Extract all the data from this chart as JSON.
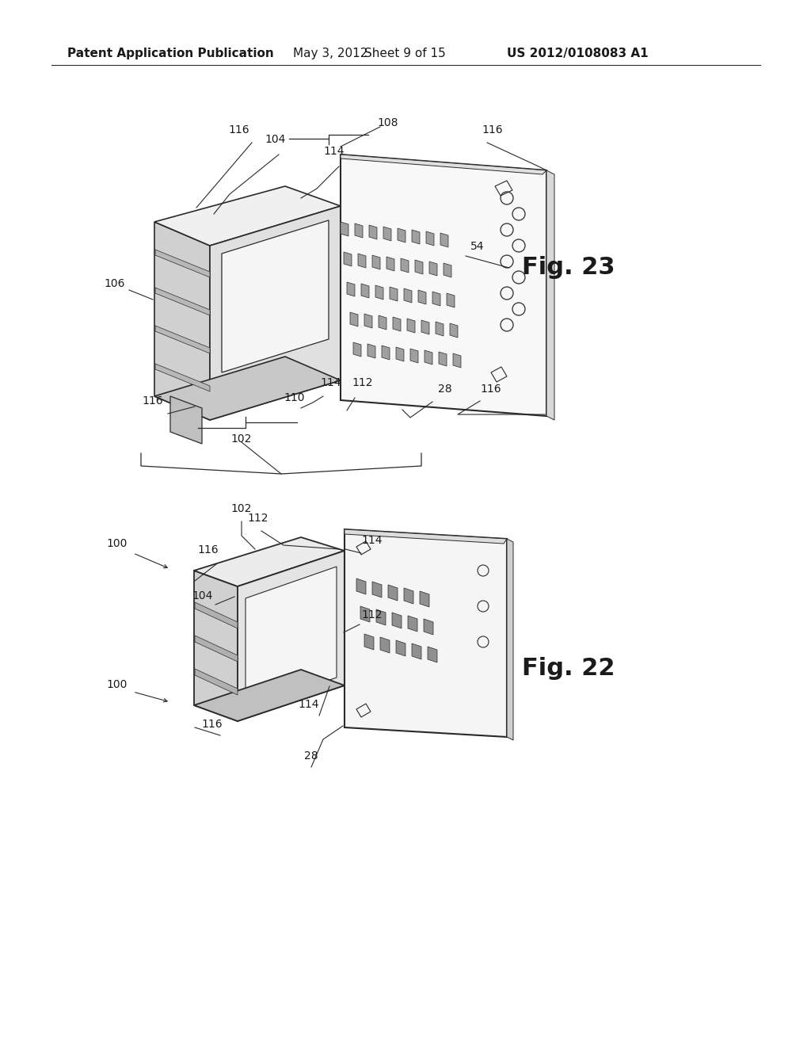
{
  "bg_color": "#ffffff",
  "header_text": "Patent Application Publication",
  "header_date": "May 3, 2012",
  "header_sheet": "Sheet 9 of 15",
  "header_patent": "US 2012/0108083 A1",
  "fig23_label": "Fig. 23",
  "fig22_label": "Fig. 22",
  "line_color": "#2a2a2a",
  "text_color": "#1a1a1a",
  "font_size_header": 11,
  "font_size_label": 10,
  "font_size_fig": 22
}
